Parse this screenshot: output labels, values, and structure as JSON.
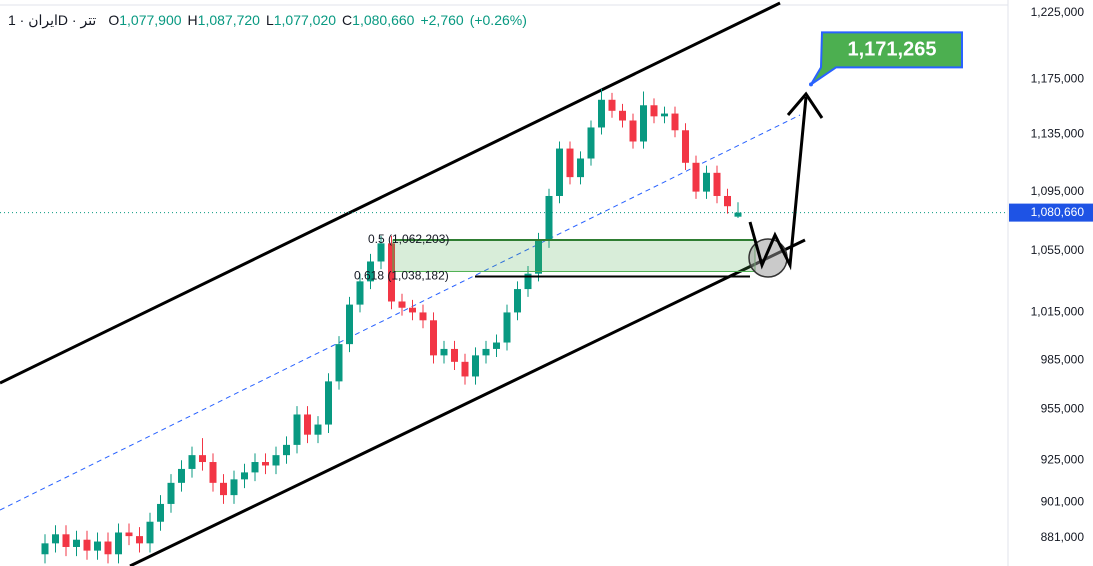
{
  "header": {
    "symbol": "ایران · 1D · تتر",
    "fields": [
      {
        "key": "O",
        "value": {
          "value": 1077900,
          "label": "1,077,900"
        }
      },
      {
        "key": "H",
        "value": {
          "value": 1087720,
          "label": "1,087,720"
        }
      },
      {
        "key": "L",
        "value": {
          "value": 1077020,
          "label": "1,077,020"
        }
      },
      {
        "key": "C",
        "value": {
          "value": 1080660,
          "label": "1,080,660"
        }
      }
    ],
    "change": {
      "value": 2760,
      "label": "+2,760"
    },
    "change_pct": {
      "value": 0.26,
      "label": "(+0.26%)"
    }
  },
  "chart_data": {
    "type": "candlestick",
    "log_scale": true,
    "up_color": "#089981",
    "down_color": "#f23645",
    "ylim": [
      865600,
      1235000
    ],
    "yticks": [
      {
        "value": 1225000,
        "label": "1,225,000"
      },
      {
        "value": 1175000,
        "label": "1,175,000"
      },
      {
        "value": 1135000,
        "label": "1,135,000"
      },
      {
        "value": 1095000,
        "label": "1,095,000"
      },
      {
        "value": 1055000,
        "label": "1,055,000"
      },
      {
        "value": 1015000,
        "label": "1,015,000"
      },
      {
        "value": 985000,
        "label": "985,000"
      },
      {
        "value": 955000,
        "label": "955,000"
      },
      {
        "value": 925000,
        "label": "925,000"
      },
      {
        "value": 901000,
        "label": "901,000"
      },
      {
        "value": 881000,
        "label": "881,000"
      }
    ],
    "open": [
      872000,
      878000,
      883000,
      876000,
      880000,
      874000,
      879000,
      872000,
      884000,
      882000,
      878000,
      890000,
      900000,
      912000,
      920000,
      928000,
      924000,
      912000,
      905000,
      914000,
      918000,
      924000,
      922000,
      928000,
      934000,
      952000,
      940000,
      946000,
      972000,
      995000,
      1020000,
      1035000,
      1048000,
      1060000,
      1022000,
      1018000,
      1015000,
      1010000,
      988000,
      992000,
      984000,
      975000,
      988000,
      992000,
      996000,
      1015000,
      1030000,
      1040000,
      1062000,
      1092000,
      1125000,
      1105000,
      1118000,
      1140000,
      1160000,
      1152000,
      1145000,
      1130000,
      1156000,
      1148000,
      1150000,
      1138000,
      1115000,
      1095000,
      1108000,
      1092000,
      1077900
    ],
    "high": [
      883000,
      888000,
      888000,
      885000,
      885000,
      884000,
      884000,
      889000,
      889000,
      887000,
      895000,
      905000,
      917000,
      925000,
      933000,
      938000,
      929000,
      917000,
      919000,
      923000,
      929000,
      929000,
      933000,
      939000,
      957000,
      957000,
      951000,
      977000,
      1000000,
      1025000,
      1040000,
      1053000,
      1065000,
      1065000,
      1027000,
      1023000,
      1020000,
      1015000,
      997000,
      997000,
      989000,
      993000,
      997000,
      1001000,
      1020000,
      1035000,
      1045000,
      1067000,
      1097000,
      1130000,
      1130000,
      1123000,
      1145000,
      1168000,
      1165000,
      1157000,
      1150000,
      1166000,
      1161000,
      1155000,
      1155000,
      1143000,
      1120000,
      1113000,
      1113000,
      1097000,
      1087720
    ],
    "low": [
      867000,
      873000,
      871000,
      871000,
      869000,
      869000,
      867000,
      867000,
      877000,
      873000,
      873000,
      885000,
      895000,
      907000,
      915000,
      919000,
      907000,
      900000,
      900000,
      909000,
      913000,
      917000,
      917000,
      923000,
      929000,
      935000,
      935000,
      941000,
      967000,
      990000,
      1015000,
      1030000,
      1043000,
      1017000,
      1013000,
      1010000,
      1005000,
      983000,
      983000,
      979000,
      970000,
      970000,
      983000,
      987000,
      991000,
      1010000,
      1025000,
      1035000,
      1057000,
      1087000,
      1100000,
      1100000,
      1113000,
      1135000,
      1147000,
      1140000,
      1125000,
      1125000,
      1143000,
      1143000,
      1133000,
      1110000,
      1090000,
      1090000,
      1087000,
      1080000,
      1077020
    ],
    "close": [
      878000,
      883000,
      876000,
      880000,
      874000,
      879000,
      872000,
      884000,
      882000,
      878000,
      890000,
      900000,
      912000,
      920000,
      928000,
      924000,
      912000,
      905000,
      914000,
      918000,
      924000,
      922000,
      928000,
      934000,
      952000,
      940000,
      946000,
      972000,
      995000,
      1020000,
      1035000,
      1048000,
      1060000,
      1022000,
      1018000,
      1015000,
      1010000,
      988000,
      992000,
      984000,
      975000,
      988000,
      992000,
      996000,
      1015000,
      1030000,
      1040000,
      1062000,
      1092000,
      1125000,
      1105000,
      1118000,
      1140000,
      1160000,
      1152000,
      1145000,
      1130000,
      1156000,
      1148000,
      1150000,
      1138000,
      1115000,
      1095000,
      1108000,
      1092000,
      1085000,
      1080660
    ],
    "last_price": {
      "value": 1080660,
      "label": "1,080,660"
    },
    "fib_levels": [
      {
        "value": 1062203,
        "label": "0.5 (1,062,203)"
      },
      {
        "value": 1038182,
        "label": "0.618 (1,038,182)"
      }
    ],
    "target": {
      "value": 1171265,
      "label": "1,171,265"
    }
  }
}
